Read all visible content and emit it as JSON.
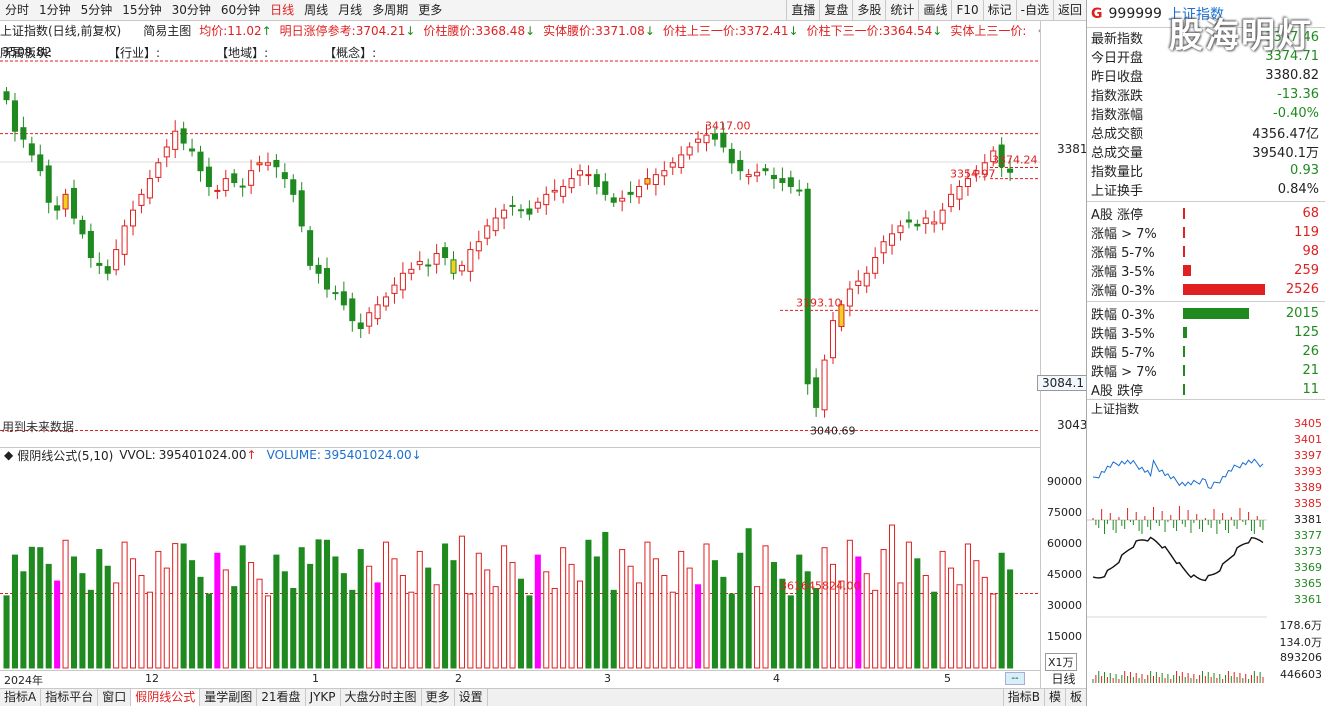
{
  "toolbar": {
    "timeframes": [
      "分时",
      "1分钟",
      "5分钟",
      "15分钟",
      "30分钟",
      "60分钟",
      "日线",
      "周线",
      "月线",
      "多周期",
      "更多"
    ],
    "active_timeframe": "日线",
    "right_buttons": [
      "直播",
      "复盘",
      "多股",
      "统计",
      "画线",
      "F10",
      "标记",
      "-自选",
      "返回"
    ]
  },
  "infobar": {
    "title": "上证指数(日线,前复权)",
    "mode": "简易主图",
    "items": [
      {
        "label": "均价:",
        "value": "11.02",
        "arrow": "↑",
        "color": "red"
      },
      {
        "label": "明日涨停参考:",
        "value": "3704.21",
        "arrow": "↓",
        "color": "red"
      },
      {
        "label": "价柱腰价:",
        "value": "3368.48",
        "arrow": "↓",
        "color": "red"
      },
      {
        "label": "实体腰价:",
        "value": "3371.08",
        "arrow": "↓",
        "color": "red"
      },
      {
        "label": "价柱上三一价:",
        "value": "3372.41",
        "arrow": "↓",
        "color": "red"
      },
      {
        "label": "价柱下三一价:",
        "value": "3364.54",
        "arrow": "↓",
        "color": "red"
      },
      {
        "label": "实体上三一价:",
        "value": "",
        "arrow": "",
        "color": "red"
      }
    ],
    "tags": [
      "所属板块:",
      "【行业】:",
      "【地域】:",
      "【概念】:"
    ],
    "future_note": "用到未来数据"
  },
  "price_axis": {
    "labels": [
      "3381",
      "3084.1",
      "3043"
    ]
  },
  "annotations": {
    "high_1": "3417.00",
    "level_1": "3193.10",
    "low_1": "3040.69",
    "level_2": "3374.24",
    "level_3": "3354.97",
    "top_left": "3509.82"
  },
  "sub_chart": {
    "indicator": "假阴线公式(5,10)",
    "vvol_label": "VVOL:",
    "vvol_value": "395401024.00",
    "volume_label": "VOLUME:",
    "volume_value": "395401024.00",
    "ma_value": "361645824.00",
    "axis": [
      "90000",
      "75000",
      "60000",
      "45000",
      "30000",
      "15000"
    ],
    "unit": "X1万"
  },
  "date_axis": [
    "2024年",
    "12",
    "1",
    "2",
    "3",
    "4",
    "5"
  ],
  "bottom_tabs": [
    "指标A",
    "指标平台",
    "窗口",
    "假阴线公式",
    "量学副图",
    "21看盘",
    "JYKP",
    "大盘分时主图",
    "更多",
    "设置"
  ],
  "bottom_active": "假阴线公式",
  "bottom_right": [
    "指标B",
    "模",
    "板"
  ],
  "day_tab": "日线",
  "scroll_label": "--",
  "panel": {
    "g": "G",
    "code": "999999",
    "name": "上证指数",
    "watermark": "股海明灯",
    "stats": [
      {
        "label": "最新指数",
        "value": "3367.46",
        "color": "green"
      },
      {
        "label": "今日开盘",
        "value": "3374.71",
        "color": "green"
      },
      {
        "label": "昨日收盘",
        "value": "3380.82",
        "color": "dark"
      },
      {
        "label": "指数涨跌",
        "value": "-13.36",
        "color": "green"
      },
      {
        "label": "指数涨幅",
        "value": "-0.40%",
        "color": "green"
      },
      {
        "label": "总成交额",
        "value": "4356.47亿",
        "color": "dark"
      },
      {
        "label": "总成交量",
        "value": "39540.1万",
        "color": "dark"
      },
      {
        "label": "指数量比",
        "value": "0.93",
        "color": "green"
      },
      {
        "label": "上证换手",
        "value": "0.84%",
        "color": "dark"
      }
    ],
    "up": [
      {
        "label": "A股 涨停",
        "value": "68",
        "pct": 2
      },
      {
        "label": "涨幅 > 7%",
        "value": "119",
        "pct": 3
      },
      {
        "label": "涨幅 5-7%",
        "value": "98",
        "pct": 3
      },
      {
        "label": "涨幅 3-5%",
        "value": "259",
        "pct": 10
      },
      {
        "label": "涨幅 0-3%",
        "value": "2526",
        "pct": 100
      }
    ],
    "down": [
      {
        "label": "跌幅 0-3%",
        "value": "2015",
        "pct": 80
      },
      {
        "label": "跌幅 3-5%",
        "value": "125",
        "pct": 5
      },
      {
        "label": "跌幅 5-7%",
        "value": "26",
        "pct": 1
      },
      {
        "label": "跌幅 > 7%",
        "value": "21",
        "pct": 1
      },
      {
        "label": "A股 跌停",
        "value": "11",
        "pct": 1
      }
    ],
    "mini_title": "上证指数",
    "mini_axis": [
      "3405",
      "3401",
      "3397",
      "3393",
      "3389",
      "3385",
      "3381",
      "3377",
      "3373",
      "3369",
      "3365",
      "3361"
    ],
    "mini_vol_axis": [
      "178.6万",
      "134.0万",
      "893206",
      "446603"
    ]
  },
  "colors": {
    "up": "#e02020",
    "down": "#1f8a1f",
    "magenta": "#ff00ff",
    "yellow": "#f0d020",
    "blue": "#1a6fd0"
  }
}
